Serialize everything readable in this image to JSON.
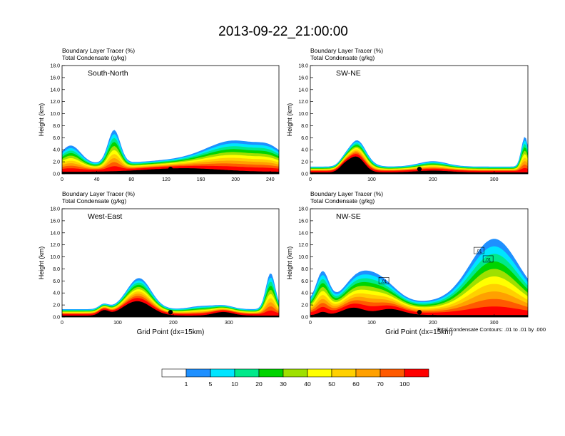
{
  "figure": {
    "title": "2013-09-22_21:00:00",
    "footnote": "Total Condensate Contours: .01 to .01 by .000"
  },
  "palette": [
    "#ffffff",
    "#1e90ff",
    "#00e5ff",
    "#00e98a",
    "#00d400",
    "#9ee000",
    "#ffff00",
    "#ffd000",
    "#ffa000",
    "#ff5a00",
    "#ff0000"
  ],
  "chart_data": [
    {
      "type": "heatmap",
      "panel": "South-North",
      "header_lines": [
        "Boundary Layer Tracer   (%)",
        "Total Condensate   (g/kg)"
      ],
      "ylabel": "Height (km)",
      "xlabel": "",
      "xlim": [
        0,
        250
      ],
      "ylim": [
        0,
        18
      ],
      "xticks": [
        0,
        40,
        80,
        120,
        160,
        200,
        240
      ],
      "yticks": [
        "0.0",
        "2.0",
        "4.0",
        "6.0",
        "8.0",
        "10.0",
        "12.0",
        "14.0",
        "16.0",
        "18.0"
      ],
      "surface_marker_x": 125
    },
    {
      "type": "heatmap",
      "panel": "SW-NE",
      "header_lines": [
        "Boundary Layer Tracer   (%)",
        "Total Condensate   (g/kg)"
      ],
      "ylabel": "Height (km)",
      "xlabel": "",
      "xlim": [
        0,
        355
      ],
      "ylim": [
        0,
        18
      ],
      "xticks": [
        0,
        100,
        200,
        300
      ],
      "yticks": [
        "0.0",
        "2.0",
        "4.0",
        "6.0",
        "8.0",
        "10.0",
        "12.0",
        "14.0",
        "16.0",
        "18.0"
      ],
      "surface_marker_x": 178
    },
    {
      "type": "heatmap",
      "panel": "West-East",
      "header_lines": [
        "Boundary Layer Tracer   (%)",
        "Total Condensate   (g/kg)"
      ],
      "ylabel": "Height (km)",
      "xlabel": "Grid Point (dx=15km)",
      "xlim": [
        0,
        390
      ],
      "ylim": [
        0,
        18
      ],
      "xticks": [
        0,
        100,
        200,
        300
      ],
      "yticks": [
        "0.0",
        "2.0",
        "4.0",
        "6.0",
        "8.0",
        "10.0",
        "12.0",
        "14.0",
        "16.0",
        "18.0"
      ],
      "surface_marker_x": 195
    },
    {
      "type": "heatmap",
      "panel": "NW-SE",
      "header_lines": [
        "Boundary Layer Tracer   (%)",
        "Total Condensate   (g/kg)"
      ],
      "ylabel": "Height (km)",
      "xlabel": "Grid Point (dx=15km)",
      "xlim": [
        0,
        355
      ],
      "ylim": [
        0,
        18
      ],
      "xticks": [
        0,
        100,
        200,
        300
      ],
      "yticks": [
        "0.0",
        "2.0",
        "4.0",
        "6.0",
        "8.0",
        "10.0",
        "12.0",
        "14.0",
        "16.0",
        "18.0"
      ],
      "surface_marker_x": 178,
      "contour_labels": [
        ".01",
        ".01",
        ".01"
      ]
    }
  ],
  "colorbar": {
    "labels": [
      "1",
      "5",
      "10",
      "20",
      "30",
      "40",
      "50",
      "60",
      "70",
      "100"
    ]
  }
}
